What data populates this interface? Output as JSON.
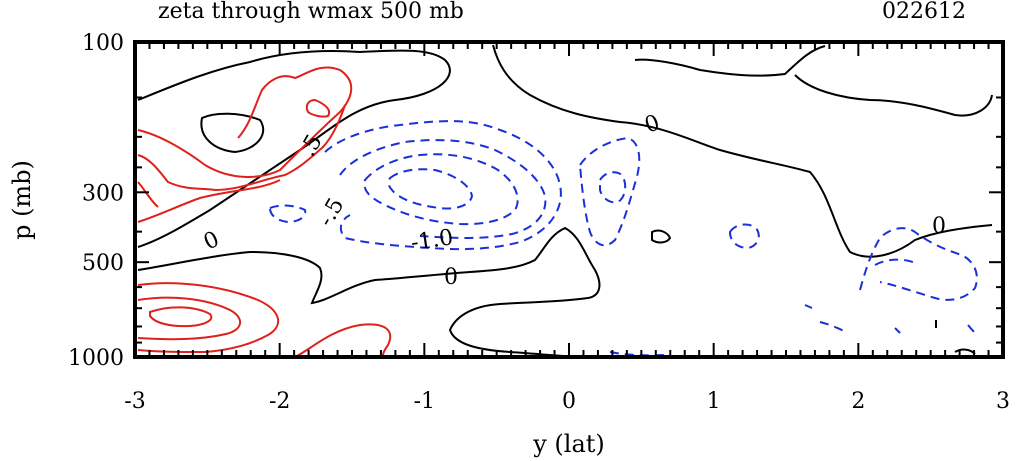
{
  "title": "zeta through wmax 500 mb",
  "date_code": "022612",
  "chart_data": {
    "type": "contour",
    "title": "zeta through wmax 500 mb",
    "xlabel": "y (lat)",
    "ylabel": "p (mb)",
    "xlim": [
      -3,
      3
    ],
    "ylim": [
      1000,
      100
    ],
    "y_scale": "log",
    "x_ticks": [
      "-3",
      "-2",
      "-1",
      "0",
      "1",
      "2",
      "3"
    ],
    "y_ticks": [
      "100",
      "300",
      "500",
      "1000"
    ],
    "contour_labels": [
      "0",
      ".5",
      "-.5",
      "-1.0",
      "0",
      "0",
      "0"
    ],
    "colors": {
      "positive": "#e0201a",
      "negative": "#1a30d8",
      "zero": "#000000"
    }
  }
}
